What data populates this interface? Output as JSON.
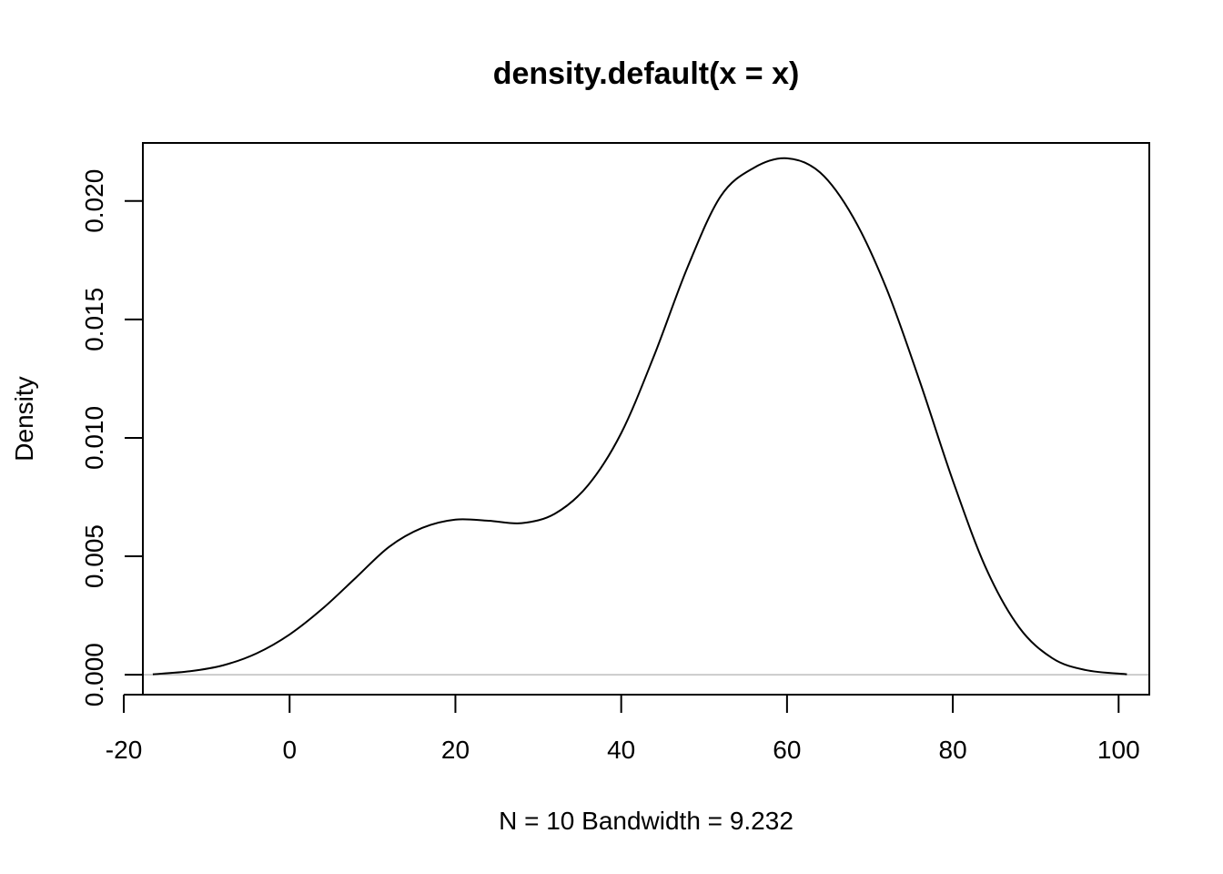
{
  "chart_data": {
    "type": "line",
    "title": "density.default(x = x)",
    "xlabel": "N = 10   Bandwidth = 9.232",
    "ylabel": "Density",
    "xlim": [
      -17.7,
      103.7
    ],
    "ylim": [
      -0.00084,
      0.02245
    ],
    "x_ticks": [
      -20,
      0,
      20,
      40,
      60,
      80,
      100
    ],
    "x_tick_labels": [
      "-20",
      "0",
      "20",
      "40",
      "60",
      "80",
      "100"
    ],
    "y_ticks": [
      0.0,
      0.005,
      0.01,
      0.015,
      0.02
    ],
    "y_tick_labels": [
      "0.000",
      "0.005",
      "0.010",
      "0.015",
      "0.020"
    ],
    "grid": false,
    "baseline": 0.0,
    "colors": {
      "line": "#000000",
      "baseline": "#bebebe",
      "frame": "#000000"
    },
    "series": [
      {
        "x": [
          -16.5,
          -12,
          -8,
          -4,
          0,
          4,
          8,
          12,
          16,
          20,
          24,
          28,
          32,
          36,
          40,
          44,
          48,
          52,
          56,
          60,
          64,
          68,
          72,
          76,
          80,
          84,
          88,
          92,
          96,
          101
        ],
        "y": [
          2e-05,
          0.00015,
          0.0004,
          0.0009,
          0.0017,
          0.0028,
          0.0041,
          0.0054,
          0.0062,
          0.00655,
          0.0065,
          0.0064,
          0.0068,
          0.008,
          0.0102,
          0.0135,
          0.0172,
          0.0202,
          0.0214,
          0.0218,
          0.0212,
          0.0193,
          0.0163,
          0.0124,
          0.0082,
          0.0045,
          0.002,
          0.0007,
          0.0002,
          2e-05
        ]
      }
    ]
  }
}
